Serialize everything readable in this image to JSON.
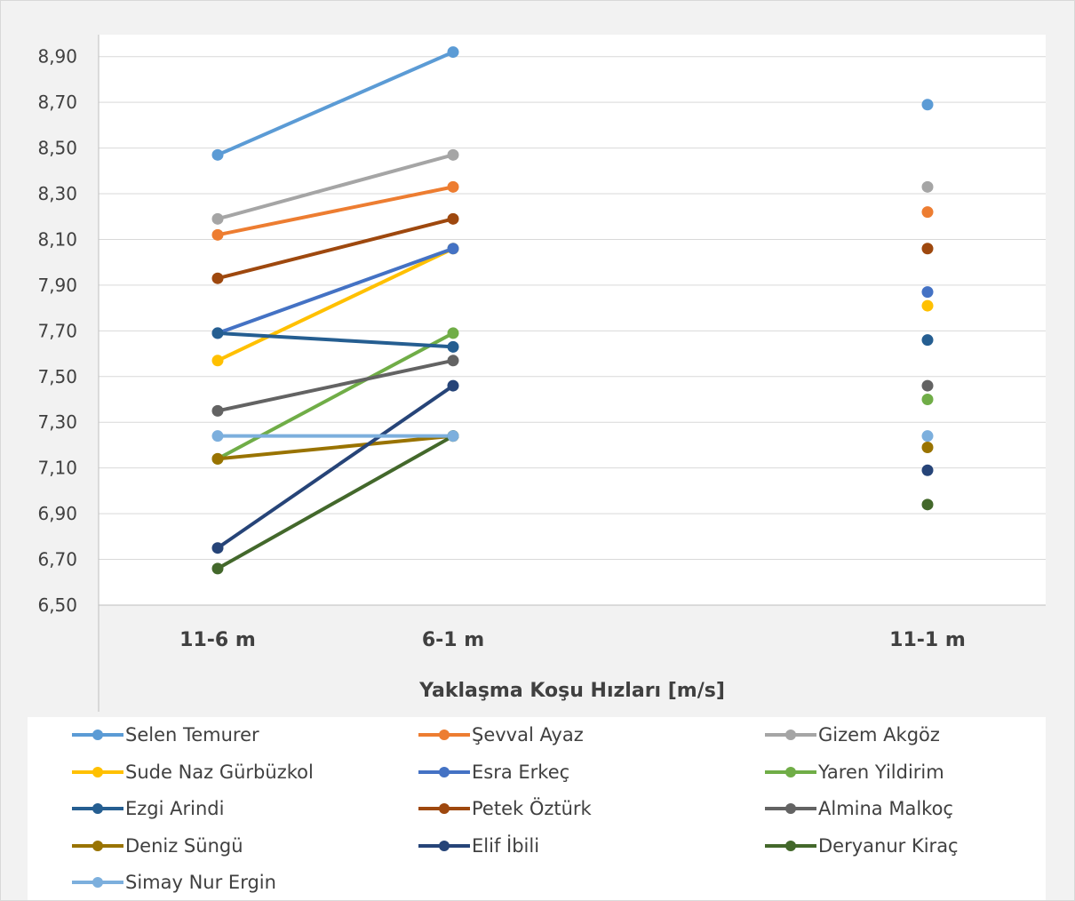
{
  "chart_data": {
    "type": "line",
    "title": "",
    "xlabel": "Yaklaşma Koşu Hızları [m/s]",
    "ylabel": "",
    "categories": [
      "11-6 m",
      "6-1 m",
      "",
      "11-1 m"
    ],
    "ylim": [
      6.5,
      9.0
    ],
    "yticks": [
      "6,50",
      "6,70",
      "6,90",
      "7,10",
      "7,30",
      "7,50",
      "7,70",
      "7,90",
      "8,10",
      "8,30",
      "8,50",
      "8,70",
      "8,90"
    ],
    "grid": true,
    "legend_position": "bottom",
    "series": [
      {
        "name": "Selen Temurer",
        "color": "#5b9bd5",
        "values": [
          8.47,
          8.92,
          null,
          8.69
        ]
      },
      {
        "name": "Şevval Ayaz",
        "color": "#ed7d31",
        "values": [
          8.12,
          8.33,
          null,
          8.22
        ]
      },
      {
        "name": "Gizem Akgöz",
        "color": "#a5a5a5",
        "values": [
          8.19,
          8.47,
          null,
          8.33
        ]
      },
      {
        "name": "Sude Naz Gürbüzkol",
        "color": "#ffc000",
        "values": [
          7.57,
          8.06,
          null,
          7.81
        ]
      },
      {
        "name": "Esra Erkeç",
        "color": "#4472c4",
        "values": [
          7.69,
          8.06,
          null,
          7.87
        ]
      },
      {
        "name": "Yaren Yildirim",
        "color": "#70ad47",
        "values": [
          7.14,
          7.69,
          null,
          7.4
        ]
      },
      {
        "name": "Ezgi Arindi",
        "color": "#255e91",
        "values": [
          7.69,
          7.63,
          null,
          7.66
        ]
      },
      {
        "name": "Petek Öztürk",
        "color": "#9e480e",
        "values": [
          7.93,
          8.19,
          null,
          8.06
        ]
      },
      {
        "name": "Almina Malkoç",
        "color": "#636363",
        "values": [
          7.35,
          7.57,
          null,
          7.46
        ]
      },
      {
        "name": "Deniz Süngü",
        "color": "#997300",
        "values": [
          7.14,
          7.24,
          null,
          7.19
        ]
      },
      {
        "name": "Elif İbili",
        "color": "#264478",
        "values": [
          6.75,
          7.46,
          null,
          7.09
        ]
      },
      {
        "name": "Deryanur Kiraç",
        "color": "#43682b",
        "values": [
          6.66,
          7.24,
          null,
          6.94
        ]
      },
      {
        "name": "Simay Nur Ergin",
        "color": "#7cafdd",
        "values": [
          7.24,
          7.24,
          null,
          7.24
        ]
      }
    ]
  }
}
